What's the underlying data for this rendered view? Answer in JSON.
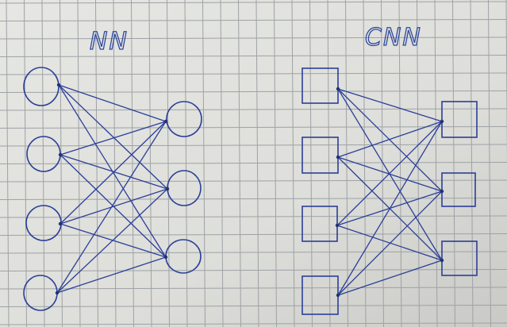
{
  "diagrams": [
    {
      "title": "NN",
      "shape": "circle",
      "layers": [
        4,
        3
      ],
      "connectivity": "fully-connected"
    },
    {
      "title": "CNN",
      "shape": "square",
      "layers": [
        4,
        3
      ],
      "connectivity": "fully-connected"
    }
  ],
  "colors": {
    "paper": "#dcdcd8",
    "grid": "#9ea3a6",
    "ink": "#2b3f98"
  }
}
